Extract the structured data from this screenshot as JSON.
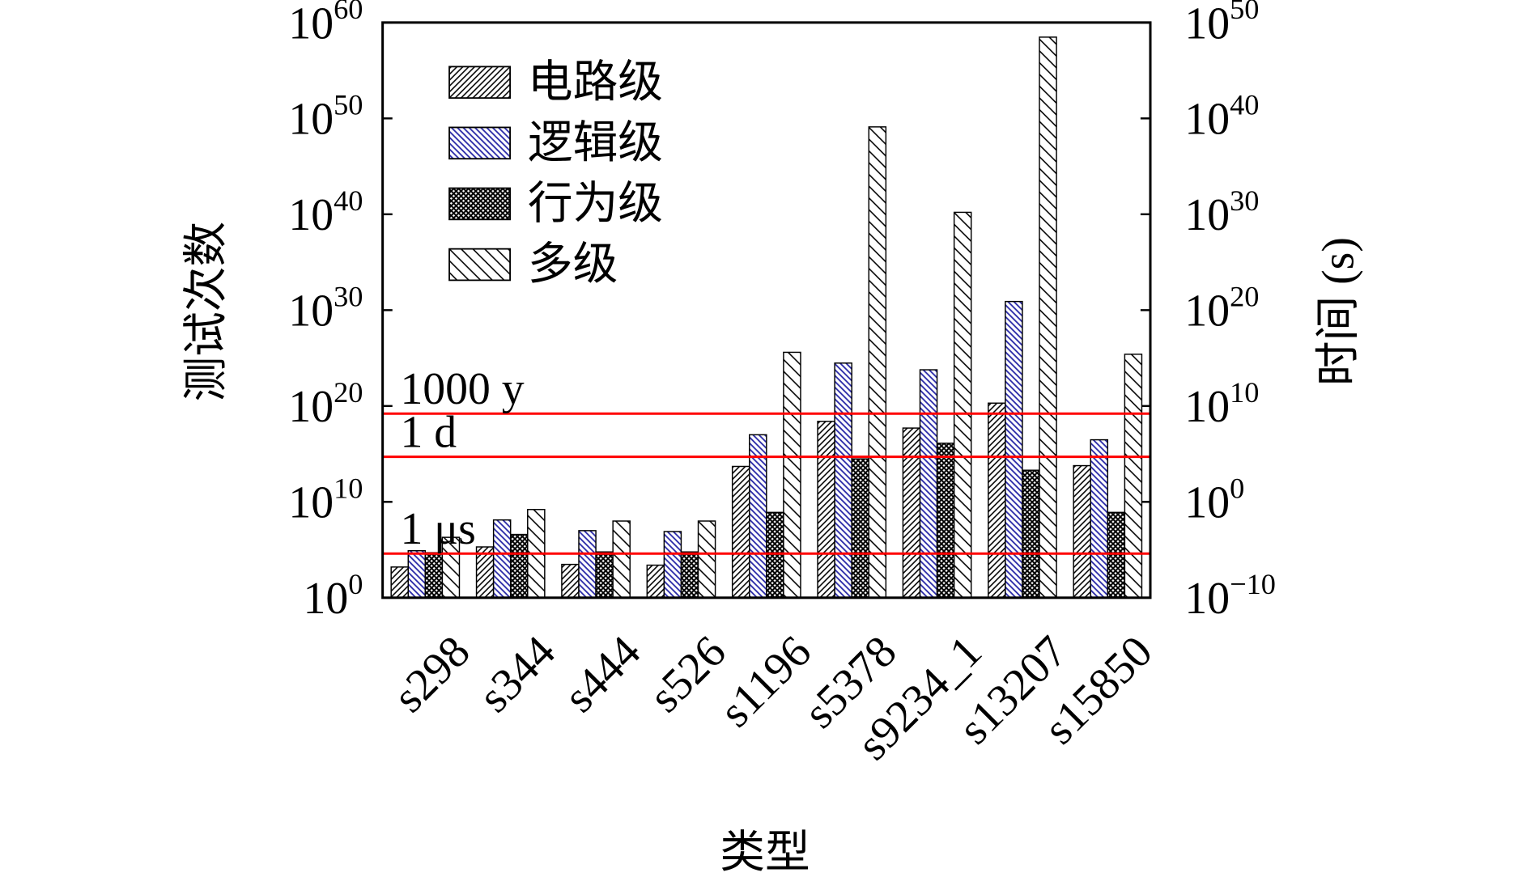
{
  "chart_data": {
    "type": "bar",
    "x_label": "类型",
    "y_label": "测试次数",
    "y2_label": "时间 (s)",
    "categories": [
      "s298",
      "s344",
      "s444",
      "s526",
      "s1196",
      "s5378",
      "s9234_1",
      "s13207",
      "s15850"
    ],
    "series": [
      {
        "name": "电路级",
        "color": "#000000",
        "values": [
          1600.0,
          200000.0,
          3000.0,
          2500.0,
          50000000000000.0,
          2.5e+18,
          5e+17,
          2e+20,
          60000000000000.0
        ]
      },
      {
        "name": "逻辑级",
        "color": "#2a2aa8",
        "values": [
          80000.0,
          130000000.0,
          10000000.0,
          8000000.0,
          1e+17,
          3e+24,
          6e+23,
          8e+30,
          3e+16
        ]
      },
      {
        "name": "行为级",
        "color": "#000000",
        "values": [
          50000.0,
          4000000.0,
          60000.0,
          60000.0,
          800000000.0,
          300000000000000.0,
          1.3e+16,
          20000000000000.0,
          800000000.0
        ]
      },
      {
        "name": "多级",
        "color": "#000000",
        "values": [
          2000000.0,
          1600000000.0,
          100000000.0,
          100000000.0,
          4e+25,
          1.3e+49,
          1.6e+40,
          3e+58,
          2.5e+25
        ]
      }
    ],
    "log_scale": true,
    "ylim": [
      1,
      1e+60
    ],
    "yticks": [
      {
        "value": 1,
        "label": "10",
        "exp": "0"
      },
      {
        "value": 10000000000.0,
        "label": "10",
        "exp": "10"
      },
      {
        "value": 1e+20,
        "label": "10",
        "exp": "20"
      },
      {
        "value": 1e+30,
        "label": "10",
        "exp": "30"
      },
      {
        "value": 1e+40,
        "label": "10",
        "exp": "40"
      },
      {
        "value": 1e+50,
        "label": "10",
        "exp": "50"
      },
      {
        "value": 1e+60,
        "label": "10",
        "exp": "60"
      }
    ],
    "y2lim": [
      1e-10,
      1e+50
    ],
    "y2ticks": [
      {
        "value": 1e-10,
        "label": "10",
        "exp": "−10"
      },
      {
        "value": 1,
        "label": "10",
        "exp": "0"
      },
      {
        "value": 10000000000.0,
        "label": "10",
        "exp": "10"
      },
      {
        "value": 1e+20,
        "label": "10",
        "exp": "20"
      },
      {
        "value": 1e+30,
        "label": "10",
        "exp": "30"
      },
      {
        "value": 1e+40,
        "label": "10",
        "exp": "40"
      },
      {
        "value": 1e+50,
        "label": "10",
        "exp": "50"
      }
    ],
    "reference_lines": [
      {
        "label": "1000 y",
        "value": 1600000000.0,
        "axis": "y2",
        "color": "#ff0000"
      },
      {
        "label": "1 d",
        "value": 50000.0,
        "axis": "y2",
        "color": "#ff0000"
      },
      {
        "label": "1 μs",
        "value": 4e-06,
        "axis": "y2",
        "color": "#ff0000"
      }
    ],
    "legend": "upper left"
  }
}
